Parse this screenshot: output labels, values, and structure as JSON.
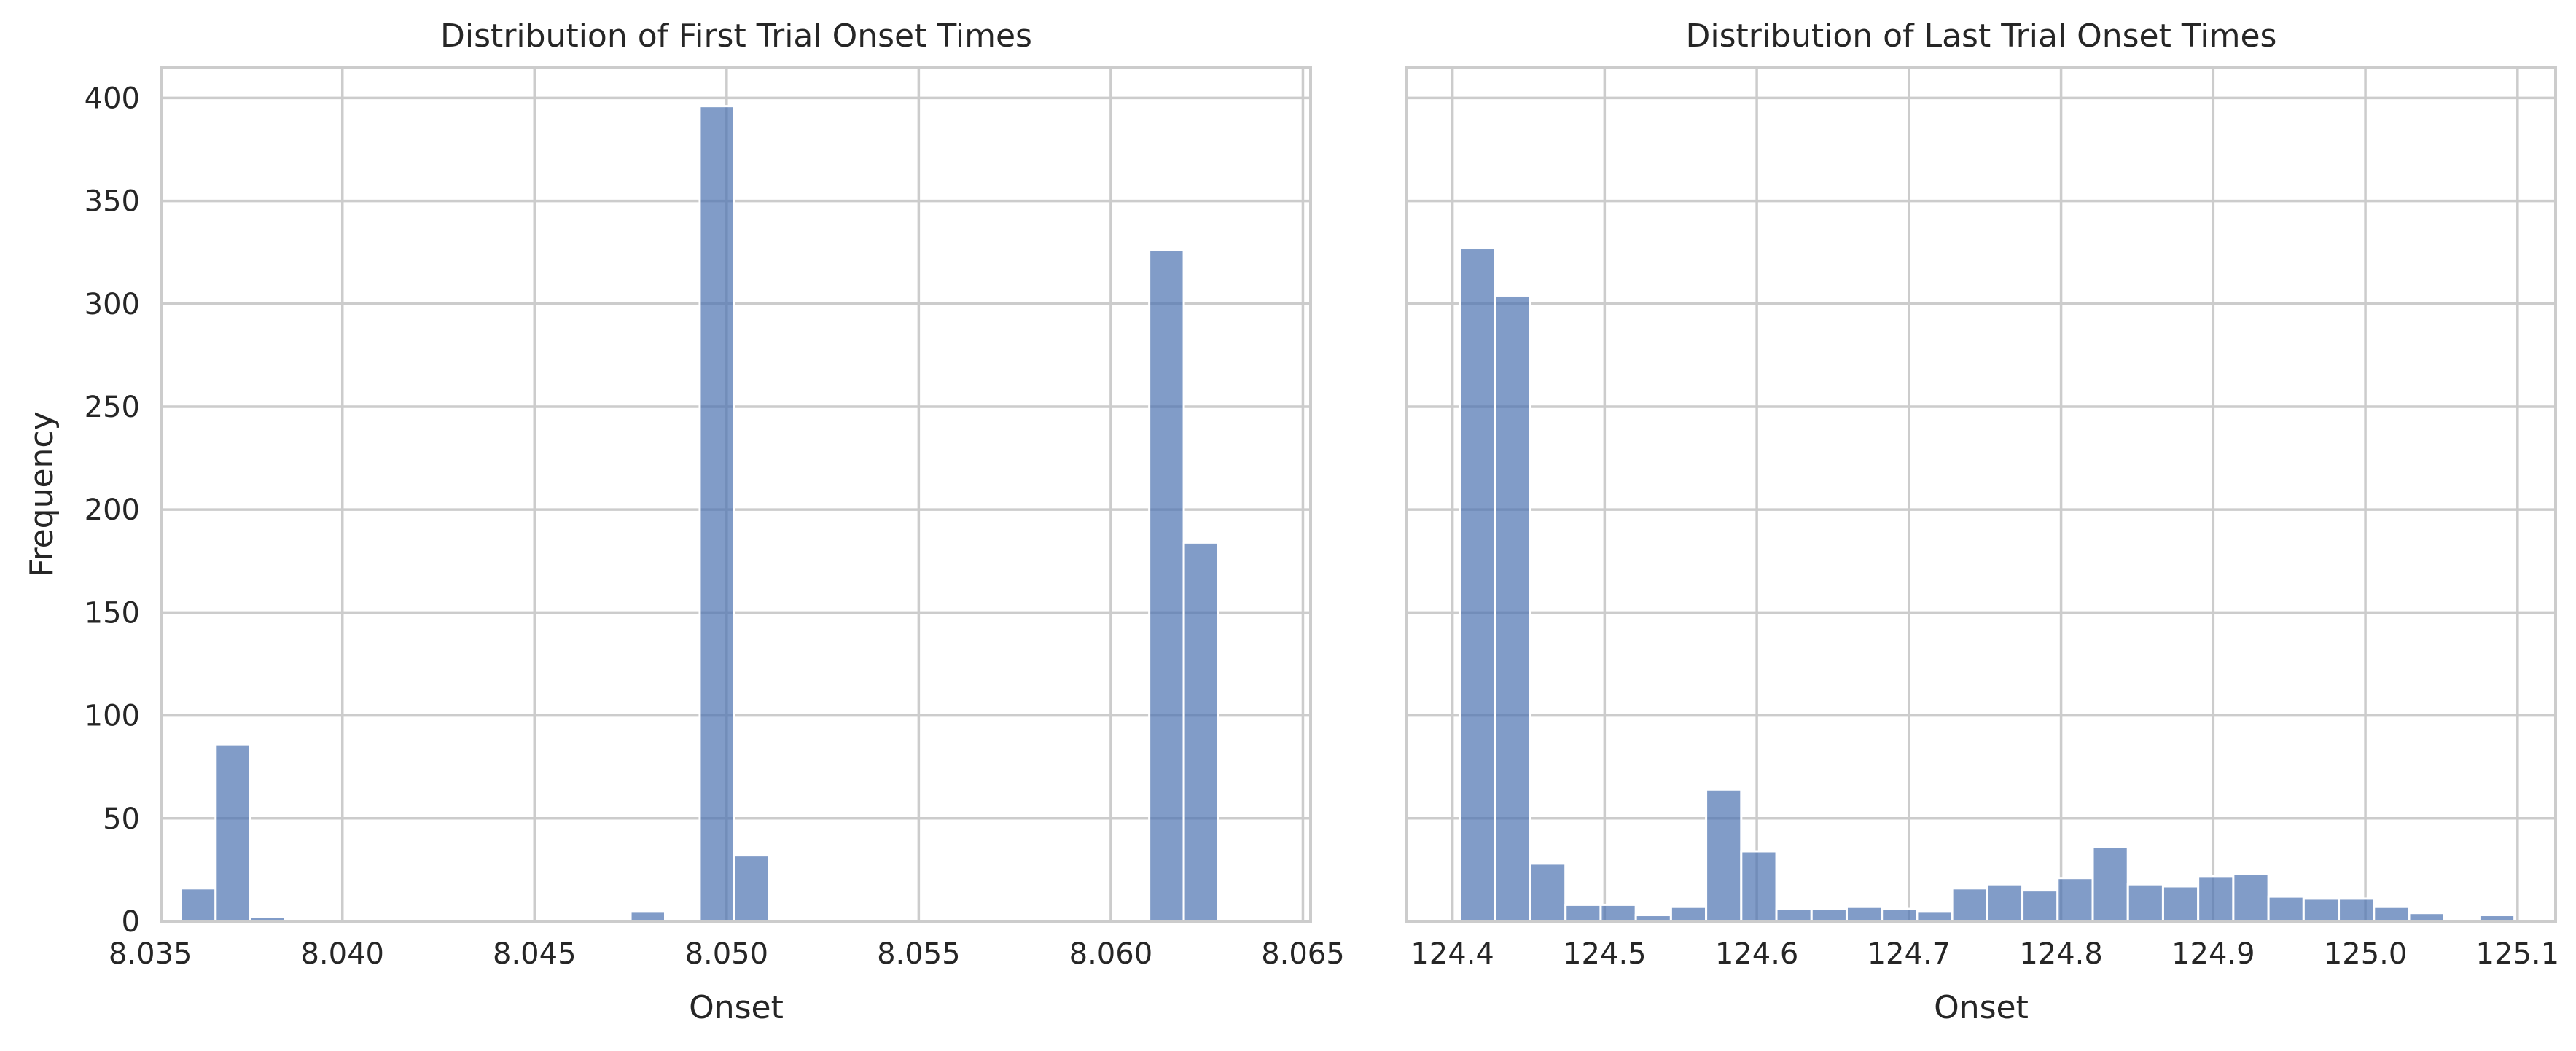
{
  "figure": {
    "shared_ylabel": "Frequency",
    "colors": {
      "bar": "#4c72b0",
      "bar_opacity": 0.7,
      "bar_edge": "#ffffff",
      "grid": "#cccccc",
      "text": "#262626"
    }
  },
  "chart_data": [
    {
      "type": "bar",
      "title": "Distribution of First Trial Onset Times",
      "xlabel": "Onset",
      "ylabel": "Frequency",
      "xlim": [
        8.0353,
        8.0652
      ],
      "ylim": [
        0,
        415
      ],
      "grid": true,
      "x_ticks": [
        8.035,
        8.04,
        8.045,
        8.05,
        8.055,
        8.06,
        8.065
      ],
      "x_tick_labels": [
        "8.035",
        "8.040",
        "8.045",
        "8.050",
        "8.055",
        "8.060",
        "8.065"
      ],
      "y_ticks": [
        0,
        50,
        100,
        150,
        200,
        250,
        300,
        350,
        400
      ],
      "y_tick_labels": [
        "0",
        "50",
        "100",
        "150",
        "200",
        "250",
        "300",
        "350",
        "400"
      ],
      "bin_start": 8.0358,
      "bin_width": 0.0009,
      "values": [
        16,
        86,
        2,
        0,
        0,
        0,
        0,
        0,
        0,
        0,
        0,
        0,
        0,
        5,
        0,
        396,
        32,
        0,
        0,
        0,
        0,
        0,
        0,
        0,
        0,
        0,
        0,
        1,
        326,
        184
      ]
    },
    {
      "type": "bar",
      "title": "Distribution of Last Trial Onset Times",
      "xlabel": "Onset",
      "ylabel": "",
      "xlim": [
        124.37,
        125.125
      ],
      "ylim": [
        0,
        415
      ],
      "grid": true,
      "x_ticks": [
        124.4,
        124.5,
        124.6,
        124.7,
        124.8,
        124.9,
        125.0,
        125.1
      ],
      "x_tick_labels": [
        "124.4",
        "124.5",
        "124.6",
        "124.7",
        "124.8",
        "124.9",
        "125.0",
        "125.1"
      ],
      "y_ticks": [
        0,
        50,
        100,
        150,
        200,
        250,
        300,
        350,
        400
      ],
      "bin_start": 124.405,
      "bin_width": 0.0231,
      "values": [
        327,
        304,
        28,
        8,
        8,
        3,
        7,
        64,
        34,
        6,
        6,
        7,
        6,
        5,
        16,
        18,
        15,
        21,
        36,
        18,
        17,
        22,
        23,
        12,
        11,
        11,
        7,
        4,
        0,
        3
      ]
    }
  ]
}
